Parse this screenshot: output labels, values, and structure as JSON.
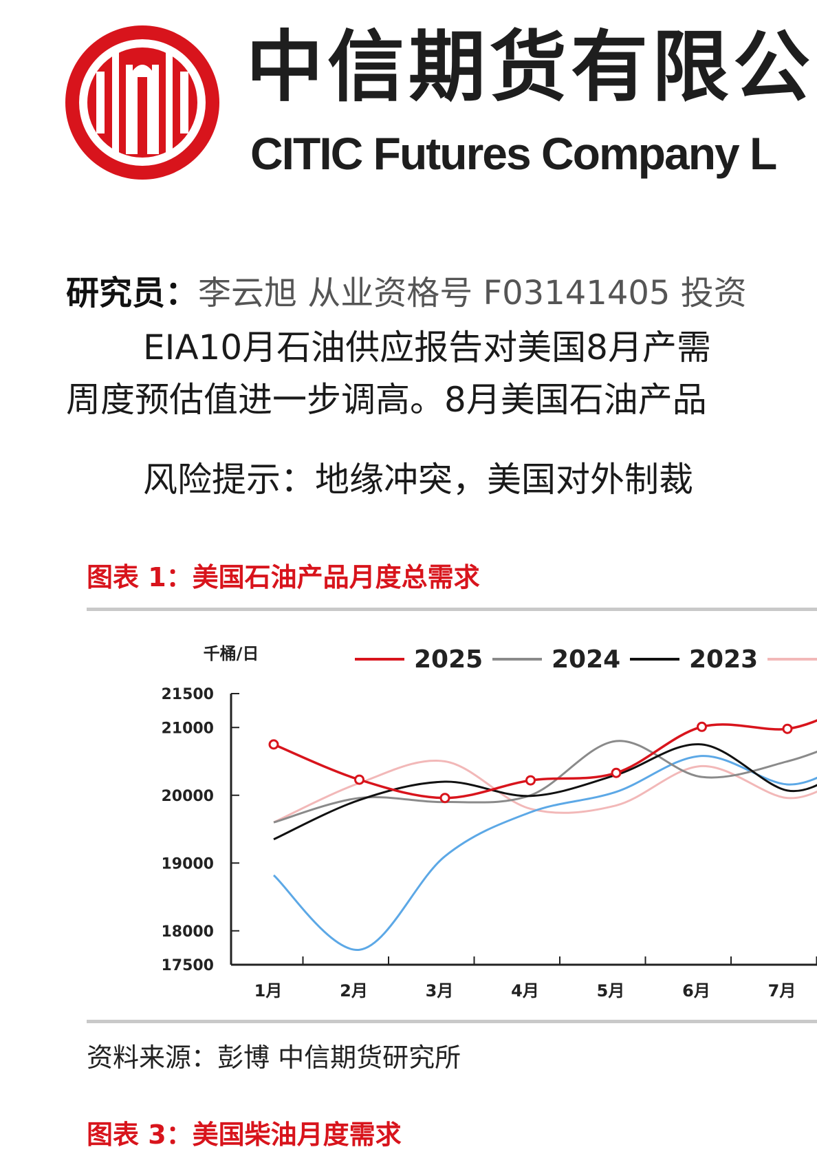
{
  "header": {
    "company_cn": "中信期货有限公",
    "company_en": "CITIC Futures Company L"
  },
  "researcher": {
    "label": "研究员：",
    "text": "李云旭  从业资格号 F03141405 投资"
  },
  "paragraphs": [
    "EIA10月石油供应报告对美国8月产需",
    "周度预估值进一步调高。8月美国石油产品",
    "风险提示：地缘冲突，美国对外制裁"
  ],
  "figure1": {
    "title": "图表 1：美国石油产品月度总需求",
    "source": "资料来源：彭博 中信期货研究所"
  },
  "figure3": {
    "title": "图表 3：美国柴油月度需求"
  },
  "colors": {
    "brand_red": "#d8141c",
    "s2025": "#d8141c",
    "s2024": "#8a8a8a",
    "s2023": "#111111",
    "s2022": "#5ca8e6",
    "s2021": "#f2b8b8"
  },
  "chart_data": {
    "type": "line",
    "ylabel": "千桶/日",
    "ylim": [
      17500,
      21500
    ],
    "yticks": [
      "21500",
      "21000",
      "20000",
      "19000",
      "18000",
      "17500"
    ],
    "ytick_values": [
      21500,
      21000,
      20000,
      19000,
      18000,
      17500
    ],
    "categories": [
      "1月",
      "2月",
      "3月",
      "4月",
      "5月",
      "6月",
      "7月"
    ],
    "series": [
      {
        "name": "2025",
        "color": "#d8141c",
        "markers": true,
        "values": [
          20750,
          20230,
          19960,
          20220,
          20330,
          21010,
          20980
        ]
      },
      {
        "name": "2024",
        "color": "#8a8a8a",
        "markers": false,
        "values": [
          19600,
          19960,
          19900,
          20000,
          20800,
          20270,
          20500
        ]
      },
      {
        "name": "2023",
        "color": "#111111",
        "markers": false,
        "values": [
          19350,
          19930,
          20200,
          19990,
          20300,
          20750,
          20070
        ]
      },
      {
        "name": "",
        "color": "#5ca8e6",
        "markers": false,
        "values": [
          18820,
          17720,
          19100,
          19750,
          20050,
          20580,
          20160
        ]
      },
      {
        "name": "",
        "color": "#f2b8b8",
        "markers": false,
        "values": [
          19600,
          20180,
          20500,
          19800,
          19850,
          20430,
          19960
        ]
      }
    ]
  }
}
